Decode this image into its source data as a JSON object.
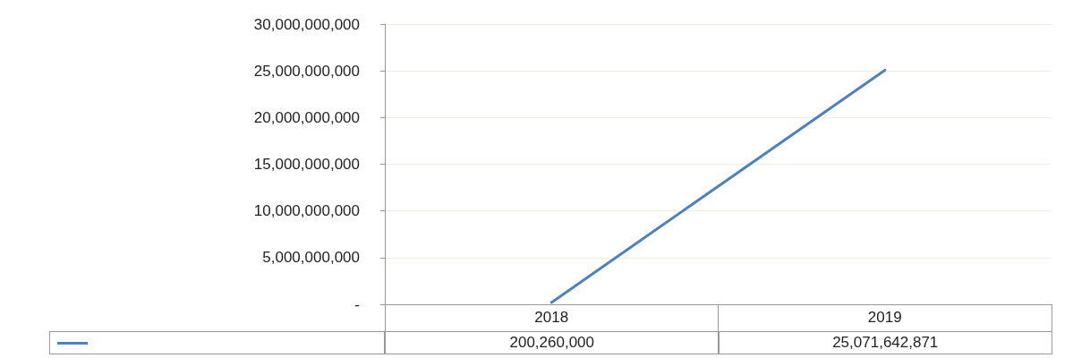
{
  "chart_data": {
    "type": "line",
    "categories": [
      "2018",
      "2019"
    ],
    "series": [
      {
        "color": "#4f81bd",
        "values": [
          200260000,
          25071642871
        ],
        "value_labels": [
          "200,260,000",
          "25,071,642,871"
        ]
      }
    ],
    "ylim": [
      0,
      30000000000
    ],
    "yticks": [
      {
        "value": 0,
        "label": "-"
      },
      {
        "value": 5000000000,
        "label": "5,000,000,000"
      },
      {
        "value": 10000000000,
        "label": "10,000,000,000"
      },
      {
        "value": 15000000000,
        "label": "15,000,000,000"
      },
      {
        "value": 20000000000,
        "label": "20,000,000,000"
      },
      {
        "value": 25000000000,
        "label": "25,000,000,000"
      },
      {
        "value": 30000000000,
        "label": "30,000,000,000"
      }
    ],
    "grid": "y",
    "marker": "none",
    "line_style": "solid"
  }
}
